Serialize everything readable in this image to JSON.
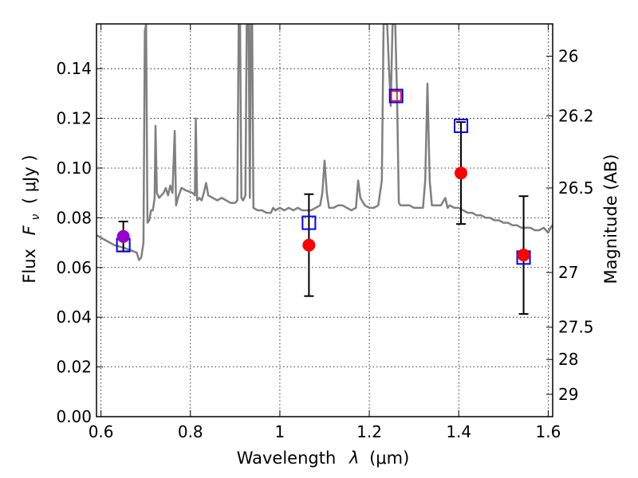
{
  "chart_data": {
    "type": "scatter",
    "xlabel_text": "Wavelength",
    "xlabel_symbol": "λ",
    "xlabel_unit": "(μm)",
    "ylabel_text": "Flux",
    "ylabel_symbol": "F",
    "ylabel_sub": "ν",
    "ylabel_unit": "( μJy )",
    "y2label": "Magnitude (AB)",
    "xlim": [
      0.59,
      1.61
    ],
    "ylim": [
      0.0,
      0.158
    ],
    "grid": true,
    "x_ticks": [
      0.6,
      0.8,
      1.0,
      1.2,
      1.4,
      1.6
    ],
    "x_tick_labels": [
      "0.6",
      "0.8",
      "1",
      "1.2",
      "1.4",
      "1.6"
    ],
    "y_ticks": [
      0.0,
      0.02,
      0.04,
      0.06,
      0.08,
      0.1,
      0.12,
      0.14
    ],
    "y_tick_labels": [
      "0.00",
      "0.02",
      "0.04",
      "0.06",
      "0.08",
      "0.10",
      "0.12",
      "0.14"
    ],
    "y2_ticks": [
      {
        "label": "26",
        "flux": 0.145
      },
      {
        "label": "26.2",
        "flux": 0.121
      },
      {
        "label": "26.5",
        "flux": 0.092
      },
      {
        "label": "27",
        "flux": 0.058
      },
      {
        "label": "27.5",
        "flux": 0.036
      },
      {
        "label": "28",
        "flux": 0.023
      },
      {
        "label": "29",
        "flux": 0.009
      }
    ],
    "colors": {
      "spectrum": "#808080",
      "observed": "#ff0000",
      "model_box": "#0000ff",
      "errorbar": "#000000",
      "first_point": "#9900cc"
    },
    "series": [
      {
        "role": "model spectrum",
        "points": [
          [
            0.59,
            0.073
          ],
          [
            0.61,
            0.071
          ],
          [
            0.63,
            0.069
          ],
          [
            0.65,
            0.068
          ],
          [
            0.665,
            0.067
          ],
          [
            0.68,
            0.066
          ],
          [
            0.685,
            0.063
          ],
          [
            0.69,
            0.064
          ],
          [
            0.695,
            0.07
          ],
          [
            0.698,
            0.155
          ],
          [
            0.701,
            0.158
          ],
          [
            0.704,
            0.078
          ],
          [
            0.708,
            0.079
          ],
          [
            0.712,
            0.083
          ],
          [
            0.716,
            0.083
          ],
          [
            0.72,
            0.088
          ],
          [
            0.722,
            0.117
          ],
          [
            0.725,
            0.09
          ],
          [
            0.73,
            0.088
          ],
          [
            0.74,
            0.09
          ],
          [
            0.745,
            0.092
          ],
          [
            0.75,
            0.089
          ],
          [
            0.755,
            0.093
          ],
          [
            0.76,
            0.09
          ],
          [
            0.765,
            0.115
          ],
          [
            0.768,
            0.085
          ],
          [
            0.772,
            0.088
          ],
          [
            0.78,
            0.092
          ],
          [
            0.79,
            0.091
          ],
          [
            0.805,
            0.09
          ],
          [
            0.81,
            0.089
          ],
          [
            0.812,
            0.12
          ],
          [
            0.815,
            0.087
          ],
          [
            0.82,
            0.088
          ],
          [
            0.825,
            0.087
          ],
          [
            0.83,
            0.09
          ],
          [
            0.835,
            0.094
          ],
          [
            0.84,
            0.089
          ],
          [
            0.85,
            0.088
          ],
          [
            0.86,
            0.087
          ],
          [
            0.87,
            0.088
          ],
          [
            0.88,
            0.087
          ],
          [
            0.89,
            0.086
          ],
          [
            0.9,
            0.086
          ],
          [
            0.905,
            0.087
          ],
          [
            0.908,
            0.158
          ],
          [
            0.911,
            0.158
          ],
          [
            0.914,
            0.088
          ],
          [
            0.918,
            0.087
          ],
          [
            0.923,
            0.089
          ],
          [
            0.926,
            0.158
          ],
          [
            0.93,
            0.158
          ],
          [
            0.933,
            0.088
          ],
          [
            0.935,
            0.158
          ],
          [
            0.938,
            0.158
          ],
          [
            0.941,
            0.084
          ],
          [
            0.95,
            0.083
          ],
          [
            0.96,
            0.083
          ],
          [
            0.97,
            0.082
          ],
          [
            0.98,
            0.082
          ],
          [
            0.985,
            0.084
          ],
          [
            0.99,
            0.083
          ],
          [
            1.0,
            0.084
          ],
          [
            1.01,
            0.083
          ],
          [
            1.02,
            0.084
          ],
          [
            1.03,
            0.083
          ],
          [
            1.04,
            0.084
          ],
          [
            1.05,
            0.083
          ],
          [
            1.06,
            0.083
          ],
          [
            1.07,
            0.083
          ],
          [
            1.08,
            0.084
          ],
          [
            1.09,
            0.085
          ],
          [
            1.095,
            0.09
          ],
          [
            1.1,
            0.103
          ],
          [
            1.105,
            0.09
          ],
          [
            1.11,
            0.084
          ],
          [
            1.12,
            0.084
          ],
          [
            1.13,
            0.085
          ],
          [
            1.14,
            0.085
          ],
          [
            1.15,
            0.084
          ],
          [
            1.16,
            0.083
          ],
          [
            1.17,
            0.084
          ],
          [
            1.175,
            0.095
          ],
          [
            1.18,
            0.088
          ],
          [
            1.19,
            0.085
          ],
          [
            1.2,
            0.084
          ],
          [
            1.21,
            0.084
          ],
          [
            1.22,
            0.085
          ],
          [
            1.228,
            0.095
          ],
          [
            1.232,
            0.158
          ],
          [
            1.24,
            0.158
          ],
          [
            1.244,
            0.14
          ],
          [
            1.248,
            0.125
          ],
          [
            1.252,
            0.158
          ],
          [
            1.258,
            0.158
          ],
          [
            1.262,
            0.13
          ],
          [
            1.266,
            0.086
          ],
          [
            1.27,
            0.085
          ],
          [
            1.28,
            0.085
          ],
          [
            1.29,
            0.085
          ],
          [
            1.3,
            0.084
          ],
          [
            1.31,
            0.084
          ],
          [
            1.32,
            0.084
          ],
          [
            1.325,
            0.095
          ],
          [
            1.33,
            0.134
          ],
          [
            1.335,
            0.095
          ],
          [
            1.34,
            0.085
          ],
          [
            1.35,
            0.085
          ],
          [
            1.36,
            0.085
          ],
          [
            1.37,
            0.088
          ],
          [
            1.375,
            0.084
          ],
          [
            1.38,
            0.085
          ],
          [
            1.39,
            0.084
          ],
          [
            1.4,
            0.084
          ],
          [
            1.41,
            0.083
          ],
          [
            1.42,
            0.082
          ],
          [
            1.43,
            0.082
          ],
          [
            1.44,
            0.081
          ],
          [
            1.45,
            0.081
          ],
          [
            1.46,
            0.08
          ],
          [
            1.47,
            0.08
          ],
          [
            1.48,
            0.079
          ],
          [
            1.49,
            0.079
          ],
          [
            1.5,
            0.078
          ],
          [
            1.51,
            0.078
          ],
          [
            1.52,
            0.077
          ],
          [
            1.53,
            0.077
          ],
          [
            1.54,
            0.076
          ],
          [
            1.55,
            0.076
          ],
          [
            1.56,
            0.076
          ],
          [
            1.57,
            0.075
          ],
          [
            1.58,
            0.075
          ],
          [
            1.59,
            0.076
          ],
          [
            1.6,
            0.074
          ],
          [
            1.605,
            0.076
          ],
          [
            1.61,
            0.077
          ]
        ]
      },
      {
        "role": "model band fluxes",
        "marker": "open square",
        "points": [
          [
            0.65,
            0.069
          ],
          [
            1.065,
            0.078
          ],
          [
            1.26,
            0.129
          ],
          [
            1.405,
            0.117
          ],
          [
            1.545,
            0.064
          ]
        ]
      },
      {
        "role": "observed band fluxes",
        "marker": "filled circle",
        "points": [
          {
            "x": 0.65,
            "y": 0.0725,
            "err": 0.006
          },
          {
            "x": 1.065,
            "y": 0.069,
            "err": 0.0205
          },
          {
            "x": 1.26,
            "y": 0.129,
            "err": 0.0
          },
          {
            "x": 1.405,
            "y": 0.098,
            "err": 0.0205
          },
          {
            "x": 1.545,
            "y": 0.065,
            "err": 0.0237
          }
        ]
      }
    ]
  }
}
